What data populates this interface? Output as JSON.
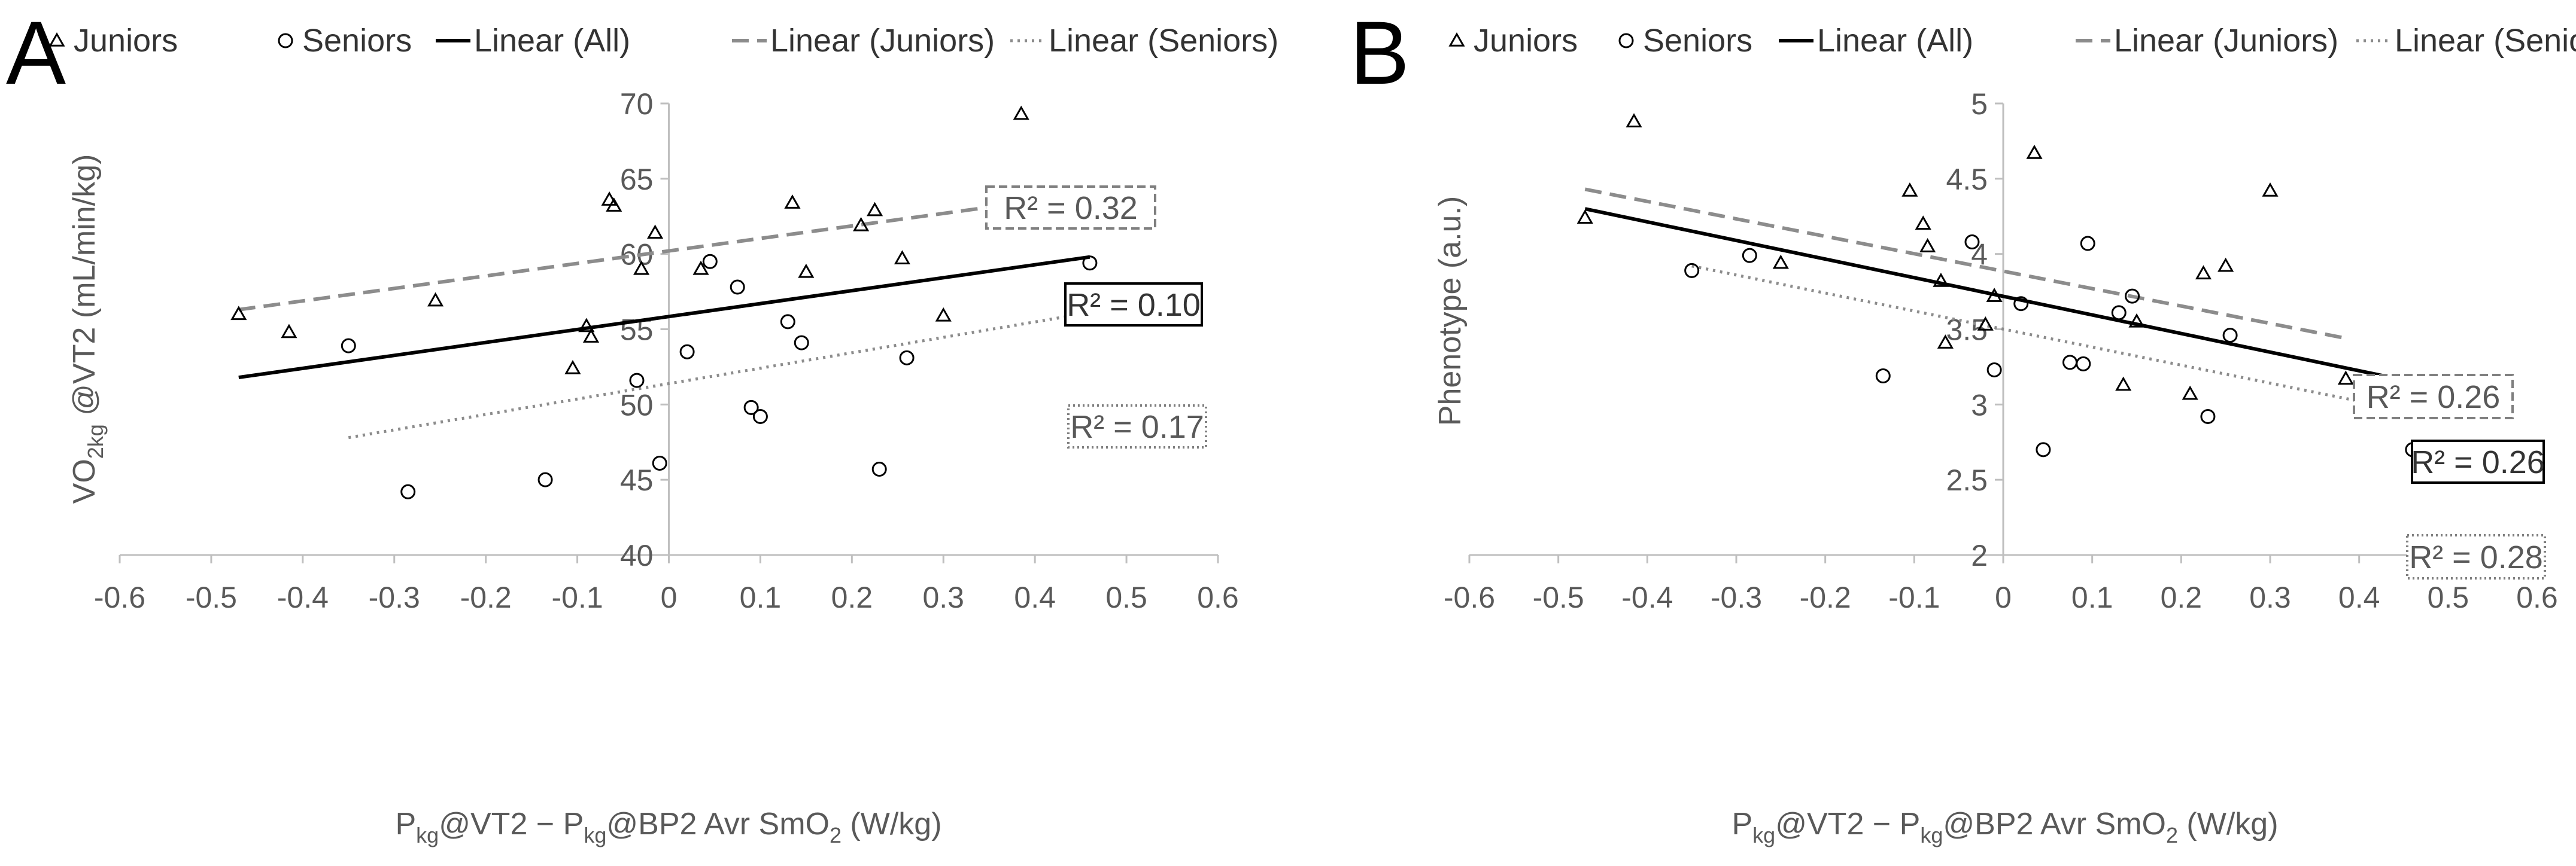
{
  "chart_data": [
    {
      "type": "scatter",
      "panel_label": "A",
      "legend": {
        "placement": "top",
        "entries": [
          {
            "label": "Juniors",
            "kind": "triangle-marker"
          },
          {
            "label": "Seniors",
            "kind": "circle-marker"
          },
          {
            "label": "Linear (All)",
            "kind": "solid-line"
          },
          {
            "label": "Linear (Juniors)",
            "kind": "dashed-line"
          },
          {
            "label": "Linear (Seniors)",
            "kind": "dotted-line"
          }
        ]
      },
      "xlabel_parts": [
        "P",
        "kg",
        "@VT2 −  P",
        "kg",
        "@BP2 Avr SmO",
        "2",
        " (W/kg)"
      ],
      "ylabel_parts": [
        "VO",
        "2kg",
        " @VT2 (mL/min/kg)"
      ],
      "xlim": [
        -0.6,
        0.6
      ],
      "ylim": [
        40,
        70
      ],
      "xticks": [
        -0.6,
        -0.5,
        -0.4,
        -0.3,
        -0.2,
        -0.1,
        0,
        0.1,
        0.2,
        0.3,
        0.4,
        0.5,
        0.6
      ],
      "yticks": [
        40,
        45,
        50,
        55,
        60,
        65,
        70
      ],
      "xtick_labels": [
        "-0.6",
        "-0.5",
        "-0.4",
        "-0.3",
        "-0.2",
        "-0.1",
        "0",
        "0.1",
        "0.2",
        "0.3",
        "0.4",
        "0.5",
        "0.6"
      ],
      "ytick_labels": [
        "40",
        "45",
        "50",
        "55",
        "60",
        "65",
        "70"
      ],
      "series": [
        {
          "name": "Juniors",
          "marker": "triangle",
          "points": [
            [
              -0.47,
              56.0
            ],
            [
              -0.415,
              54.8
            ],
            [
              -0.255,
              56.9
            ],
            [
              -0.105,
              52.4
            ],
            [
              -0.09,
              55.2
            ],
            [
              -0.085,
              54.5
            ],
            [
              -0.065,
              63.6
            ],
            [
              -0.06,
              63.2
            ],
            [
              -0.03,
              59.0
            ],
            [
              -0.015,
              61.4
            ],
            [
              0.035,
              59.0
            ],
            [
              0.135,
              63.4
            ],
            [
              0.15,
              58.8
            ],
            [
              0.21,
              61.9
            ],
            [
              0.225,
              62.9
            ],
            [
              0.255,
              59.7
            ],
            [
              0.3,
              55.9
            ],
            [
              0.385,
              69.3
            ]
          ]
        },
        {
          "name": "Seniors",
          "marker": "circle",
          "points": [
            [
              -0.35,
              53.9
            ],
            [
              -0.285,
              44.2
            ],
            [
              -0.135,
              45.0
            ],
            [
              -0.035,
              51.6
            ],
            [
              -0.01,
              46.1
            ],
            [
              0.02,
              53.5
            ],
            [
              0.045,
              59.5
            ],
            [
              0.075,
              57.8
            ],
            [
              0.09,
              49.8
            ],
            [
              0.1,
              49.2
            ],
            [
              0.13,
              55.5
            ],
            [
              0.145,
              54.1
            ],
            [
              0.23,
              45.7
            ],
            [
              0.26,
              53.1
            ],
            [
              0.46,
              59.4
            ]
          ]
        }
      ],
      "trendlines": [
        {
          "name": "Linear (All)",
          "style": "solid",
          "x": [
            -0.47,
            0.46
          ],
          "y": [
            51.8,
            59.8
          ],
          "r2": "R² = 0.10"
        },
        {
          "name": "Linear (Juniors)",
          "style": "dashed",
          "x": [
            -0.47,
            0.385
          ],
          "y": [
            56.3,
            63.4
          ],
          "r2": "R² = 0.32"
        },
        {
          "name": "Linear (Seniors)",
          "style": "dotted",
          "x": [
            -0.35,
            0.46
          ],
          "y": [
            47.8,
            56.1
          ],
          "r2": "R² = 0.17"
        }
      ]
    },
    {
      "type": "scatter",
      "panel_label": "B",
      "legend": {
        "placement": "top",
        "entries": [
          {
            "label": "Juniors",
            "kind": "triangle-marker"
          },
          {
            "label": "Seniors",
            "kind": "circle-marker"
          },
          {
            "label": "Linear (All)",
            "kind": "solid-line"
          },
          {
            "label": "Linear (Juniors)",
            "kind": "dashed-line"
          },
          {
            "label": "Linear (Seniors)",
            "kind": "dotted-line"
          }
        ]
      },
      "xlabel_parts": [
        "P",
        "kg",
        "@VT2 −  P",
        "kg",
        "@BP2 Avr SmO",
        "2",
        " (W/kg)"
      ],
      "ylabel_parts": [
        "Phenotype (a.u.)"
      ],
      "xlim": [
        -0.6,
        0.6
      ],
      "ylim": [
        2,
        5
      ],
      "xticks": [
        -0.6,
        -0.5,
        -0.4,
        -0.3,
        -0.2,
        -0.1,
        0,
        0.1,
        0.2,
        0.3,
        0.4,
        0.5,
        0.6
      ],
      "yticks": [
        2,
        2.5,
        3,
        3.5,
        4,
        4.5,
        5
      ],
      "xtick_labels": [
        "-0.6",
        "-0.5",
        "-0.4",
        "-0.3",
        "-0.2",
        "-0.1",
        "0",
        "0.1",
        "0.2",
        "0.3",
        "0.4",
        "0.5",
        "0.6"
      ],
      "ytick_labels": [
        "2",
        "2.5",
        "3",
        "3.5",
        "4",
        "4.5",
        "5"
      ],
      "series": [
        {
          "name": "Juniors",
          "marker": "triangle",
          "points": [
            [
              -0.47,
              4.24
            ],
            [
              -0.415,
              4.88
            ],
            [
              -0.25,
              3.94
            ],
            [
              -0.105,
              4.42
            ],
            [
              -0.09,
              4.2
            ],
            [
              -0.085,
              4.05
            ],
            [
              -0.07,
              3.82
            ],
            [
              -0.065,
              3.41
            ],
            [
              -0.02,
              3.53
            ],
            [
              -0.01,
              3.72
            ],
            [
              0.035,
              4.67
            ],
            [
              0.135,
              3.13
            ],
            [
              0.15,
              3.55
            ],
            [
              0.21,
              3.07
            ],
            [
              0.225,
              3.87
            ],
            [
              0.25,
              3.92
            ],
            [
              0.3,
              4.42
            ],
            [
              0.385,
              3.17
            ]
          ]
        },
        {
          "name": "Seniors",
          "marker": "circle",
          "points": [
            [
              -0.35,
              3.89
            ],
            [
              -0.285,
              3.99
            ],
            [
              -0.135,
              3.19
            ],
            [
              -0.035,
              4.08
            ],
            [
              -0.01,
              3.23
            ],
            [
              0.02,
              3.67
            ],
            [
              0.045,
              2.7
            ],
            [
              0.075,
              3.28
            ],
            [
              0.09,
              3.27
            ],
            [
              0.095,
              4.07
            ],
            [
              0.13,
              3.61
            ],
            [
              0.145,
              3.72
            ],
            [
              0.23,
              2.92
            ],
            [
              0.255,
              3.46
            ],
            [
              0.46,
              2.7
            ]
          ]
        }
      ],
      "trendlines": [
        {
          "name": "Linear (All)",
          "style": "solid",
          "x": [
            -0.47,
            0.46
          ],
          "y": [
            4.3,
            3.15
          ],
          "r2": "R² = 0.26"
        },
        {
          "name": "Linear (Juniors)",
          "style": "dashed",
          "x": [
            -0.47,
            0.385
          ],
          "y": [
            4.43,
            3.44
          ],
          "r2": "R² = 0.26"
        },
        {
          "name": "Linear (Seniors)",
          "style": "dotted",
          "x": [
            -0.35,
            0.46
          ],
          "y": [
            3.92,
            2.95
          ],
          "r2": "R² = 0.28"
        }
      ]
    }
  ]
}
